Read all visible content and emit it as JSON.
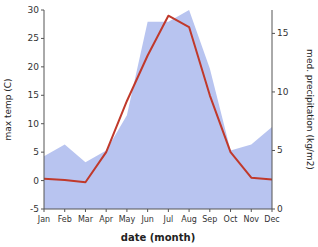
{
  "chart_data": {
    "type": "line",
    "xlabel": "date (month)",
    "ylabel": "max temp (C)",
    "y2label": "med. precipitation (kg/m2)",
    "categories": [
      "Jan",
      "Feb",
      "Mar",
      "Apr",
      "May",
      "Jun",
      "Jul",
      "Aug",
      "Sep",
      "Oct",
      "Nov",
      "Dec"
    ],
    "series": [
      {
        "type": "area",
        "axis": "y2",
        "color": "#b8c4f0",
        "values": [
          4.5,
          5.5,
          4.0,
          5.0,
          8.0,
          16.0,
          16.0,
          17.0,
          12.0,
          5.0,
          5.5,
          7.0
        ]
      },
      {
        "type": "line",
        "color": "#c0392b",
        "values": [
          0.3,
          0.1,
          -0.3,
          5.0,
          14.0,
          22.0,
          29.0,
          27.0,
          15.0,
          5.0,
          0.5,
          0.2
        ]
      }
    ],
    "ylim": [
      -5,
      30
    ],
    "yticks": [
      -5,
      0,
      5,
      10,
      15,
      20,
      25,
      30
    ],
    "y2lim": [
      0,
      17
    ],
    "y2ticks": [
      0,
      5,
      10,
      15
    ],
    "grid": false
  }
}
